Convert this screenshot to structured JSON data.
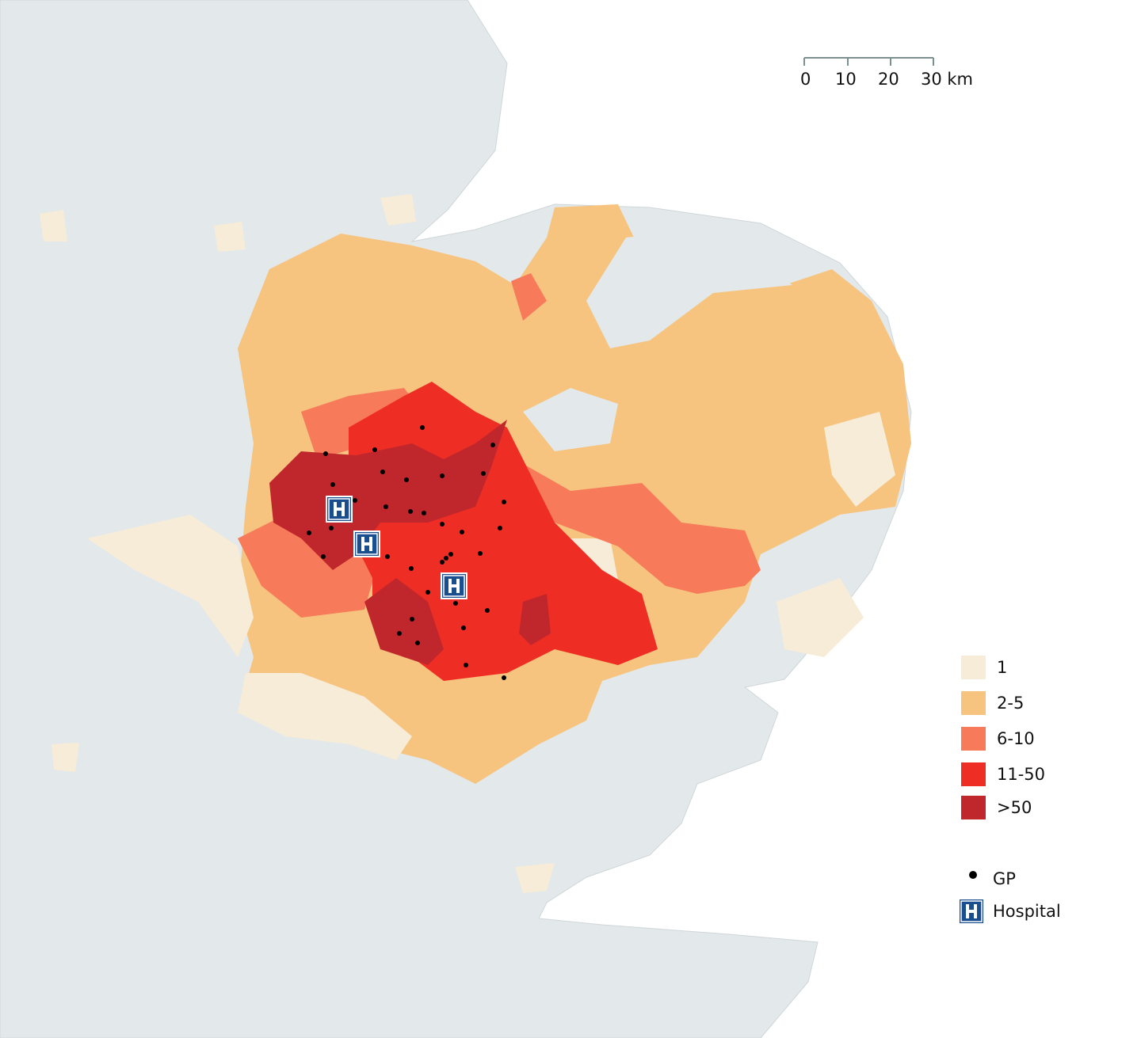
{
  "scale_bar": {
    "labels": [
      "0",
      "10",
      "20",
      "30 km"
    ]
  },
  "legend": {
    "classes": [
      {
        "label": "1",
        "color": "#f7ecd8"
      },
      {
        "label": "2-5",
        "color": "#f6c47e"
      },
      {
        "label": "6-10",
        "color": "#f77b5a"
      },
      {
        "label": "11-50",
        "color": "#ee2d24"
      },
      {
        "label": ">50",
        "color": "#c0272d"
      }
    ],
    "symbols": [
      {
        "label": "GP"
      },
      {
        "label": "Hospital"
      }
    ]
  }
}
